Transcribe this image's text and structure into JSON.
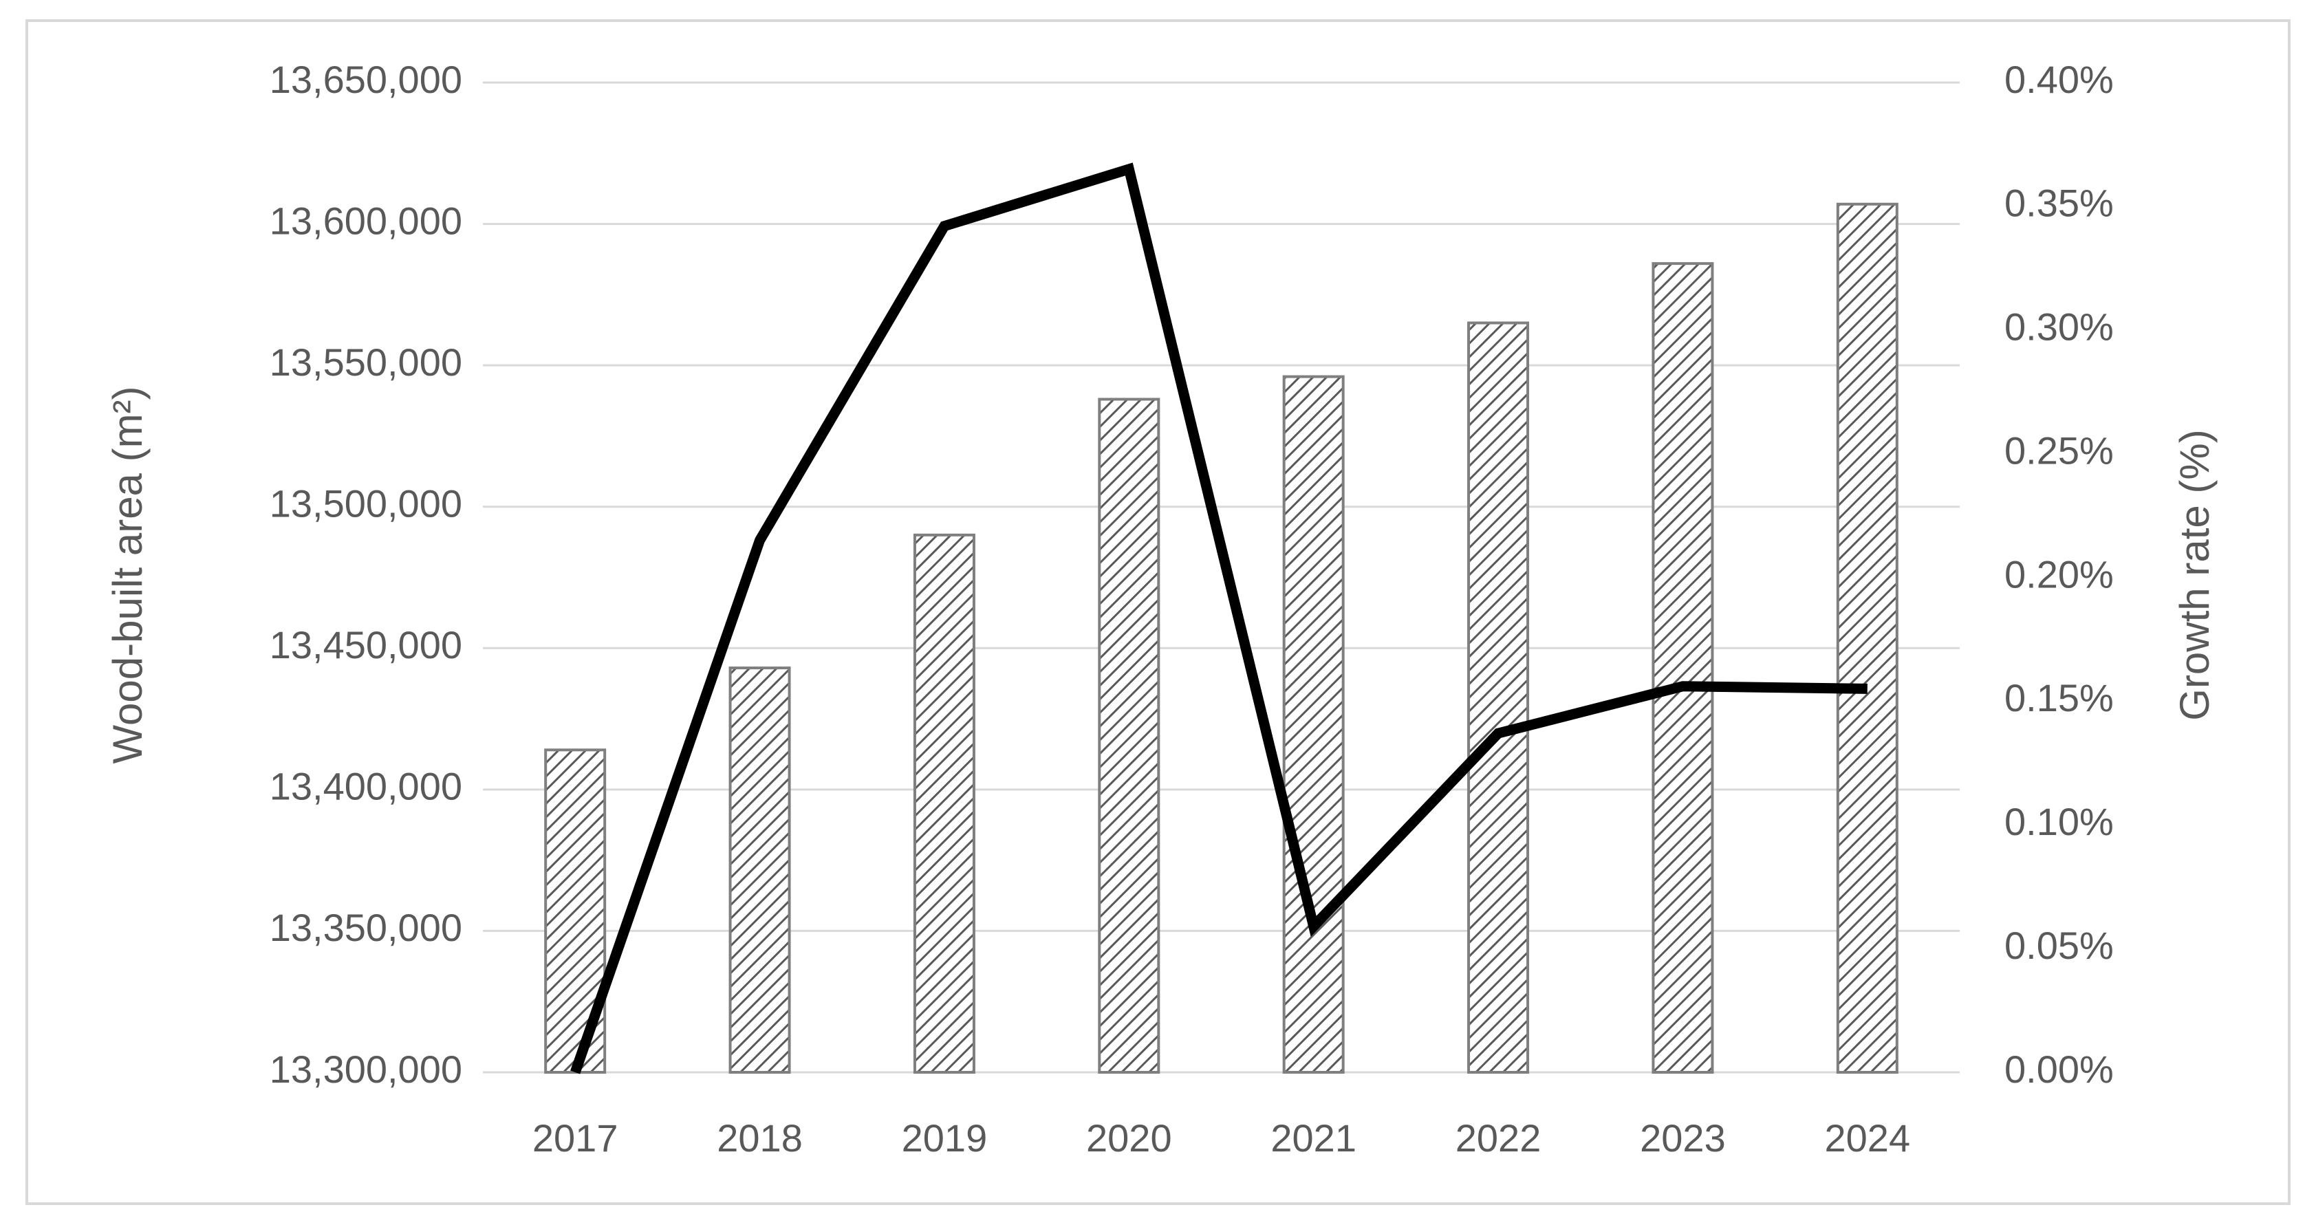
{
  "chart_data": {
    "type": "bar-line",
    "y_label": "Wood-built area (m²)",
    "y2_label": "Growth rate (%)",
    "categories": [
      "2017",
      "2018",
      "2019",
      "2020",
      "2021",
      "2022",
      "2023",
      "2024"
    ],
    "series": [
      {
        "type": "bar",
        "color": "#595959",
        "values": [
          13414000,
          13443000,
          13490000,
          13538000,
          13546000,
          13565000,
          13586000,
          13607000
        ]
      },
      {
        "type": "line",
        "color": "#000000",
        "axis": "y2",
        "values": [
          0,
          0.215,
          0.342,
          0.365,
          0.059,
          0.137,
          0.156,
          0.155
        ]
      }
    ],
    "ylim": [
      13300000,
      13650000
    ],
    "yticks": [
      {
        "value": 13300000,
        "label": "13,300,000"
      },
      {
        "value": 13350000,
        "label": "13,350,000"
      },
      {
        "value": 13400000,
        "label": "13,400,000"
      },
      {
        "value": 13450000,
        "label": "13,450,000"
      },
      {
        "value": 13500000,
        "label": "13,500,000"
      },
      {
        "value": 13550000,
        "label": "13,550,000"
      },
      {
        "value": 13600000,
        "label": "13,600,000"
      },
      {
        "value": 13650000,
        "label": "13,650,000"
      }
    ],
    "y2lim": [
      0,
      0.4
    ],
    "y2ticks": [
      {
        "value": 0,
        "label": "0.00%"
      },
      {
        "value": 0.05,
        "label": "0.05%"
      },
      {
        "value": 0.1,
        "label": "0.10%"
      },
      {
        "value": 0.15,
        "label": "0.15%"
      },
      {
        "value": 0.2,
        "label": "0.20%"
      },
      {
        "value": 0.25,
        "label": "0.25%"
      },
      {
        "value": 0.3,
        "label": "0.30%"
      },
      {
        "value": 0.35,
        "label": "0.35%"
      },
      {
        "value": 0.4,
        "label": "0.40%"
      }
    ],
    "grid": true
  }
}
